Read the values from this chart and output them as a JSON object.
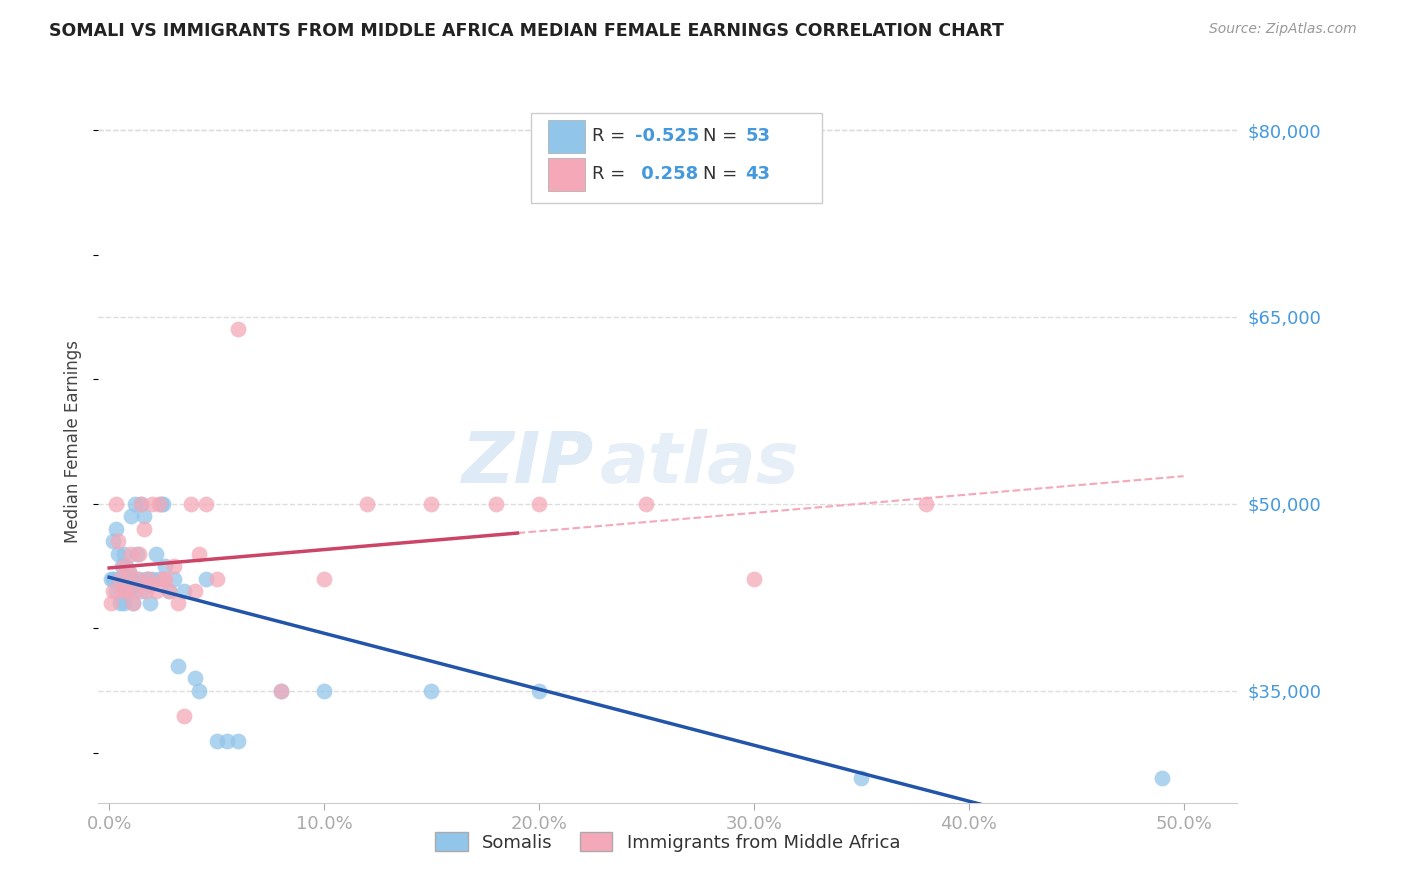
{
  "title": "SOMALI VS IMMIGRANTS FROM MIDDLE AFRICA MEDIAN FEMALE EARNINGS CORRELATION CHART",
  "source": "Source: ZipAtlas.com",
  "ylabel": "Median Female Earnings",
  "xlabel_ticks": [
    "0.0%",
    "10.0%",
    "20.0%",
    "30.0%",
    "40.0%",
    "50.0%"
  ],
  "xlabel_tick_vals": [
    0.0,
    0.1,
    0.2,
    0.3,
    0.4,
    0.5
  ],
  "ytick_labels": [
    "$35,000",
    "$50,000",
    "$65,000",
    "$80,000"
  ],
  "ytick_vals": [
    35000,
    50000,
    65000,
    80000
  ],
  "ylim": [
    26000,
    84000
  ],
  "xlim": [
    -0.005,
    0.525
  ],
  "r1": "-0.525",
  "n1": "53",
  "r2": "0.258",
  "n2": "43",
  "color_blue": "#92C5EA",
  "color_pink": "#F4A8B8",
  "trendline_blue": "#2255AA",
  "trendline_pink": "#CC4466",
  "trendline_dashed_blue": "#AACCEE",
  "trendline_dashed_pink": "#F4A8B8",
  "background_color": "#FFFFFF",
  "grid_color": "#DDDDDD",
  "watermark_zip": "ZIP",
  "watermark_atlas": "atlas",
  "somali_x": [
    0.001,
    0.002,
    0.002,
    0.003,
    0.003,
    0.004,
    0.004,
    0.005,
    0.005,
    0.006,
    0.006,
    0.007,
    0.007,
    0.007,
    0.008,
    0.008,
    0.009,
    0.009,
    0.01,
    0.01,
    0.011,
    0.011,
    0.012,
    0.013,
    0.014,
    0.015,
    0.015,
    0.016,
    0.017,
    0.018,
    0.019,
    0.02,
    0.022,
    0.023,
    0.024,
    0.025,
    0.026,
    0.028,
    0.03,
    0.032,
    0.035,
    0.04,
    0.042,
    0.045,
    0.05,
    0.055,
    0.06,
    0.08,
    0.1,
    0.15,
    0.2,
    0.35,
    0.49
  ],
  "somali_y": [
    44000,
    47000,
    44000,
    48000,
    43000,
    46000,
    44000,
    44000,
    42000,
    43500,
    45000,
    46000,
    44000,
    42000,
    43000,
    45000,
    44500,
    43000,
    49000,
    44000,
    43500,
    42000,
    50000,
    46000,
    44000,
    50000,
    43000,
    49000,
    44000,
    44000,
    42000,
    44000,
    46000,
    44000,
    50000,
    50000,
    45000,
    43000,
    44000,
    37000,
    43000,
    36000,
    35000,
    44000,
    31000,
    31000,
    31000,
    35000,
    35000,
    35000,
    35000,
    28000,
    28000
  ],
  "midafrica_x": [
    0.001,
    0.002,
    0.003,
    0.004,
    0.005,
    0.006,
    0.007,
    0.008,
    0.009,
    0.01,
    0.011,
    0.012,
    0.013,
    0.014,
    0.015,
    0.016,
    0.017,
    0.018,
    0.019,
    0.02,
    0.022,
    0.023,
    0.025,
    0.026,
    0.028,
    0.03,
    0.032,
    0.035,
    0.038,
    0.04,
    0.042,
    0.045,
    0.05,
    0.06,
    0.08,
    0.1,
    0.12,
    0.15,
    0.18,
    0.2,
    0.25,
    0.3,
    0.38
  ],
  "midafrica_y": [
    42000,
    43000,
    50000,
    47000,
    44000,
    43000,
    45000,
    43000,
    44500,
    46000,
    42000,
    43000,
    44000,
    46000,
    50000,
    48000,
    43000,
    44000,
    43500,
    50000,
    43000,
    50000,
    44000,
    44000,
    43000,
    45000,
    42000,
    33000,
    50000,
    43000,
    46000,
    50000,
    44000,
    64000,
    35000,
    44000,
    50000,
    50000,
    50000,
    50000,
    50000,
    44000,
    50000
  ]
}
